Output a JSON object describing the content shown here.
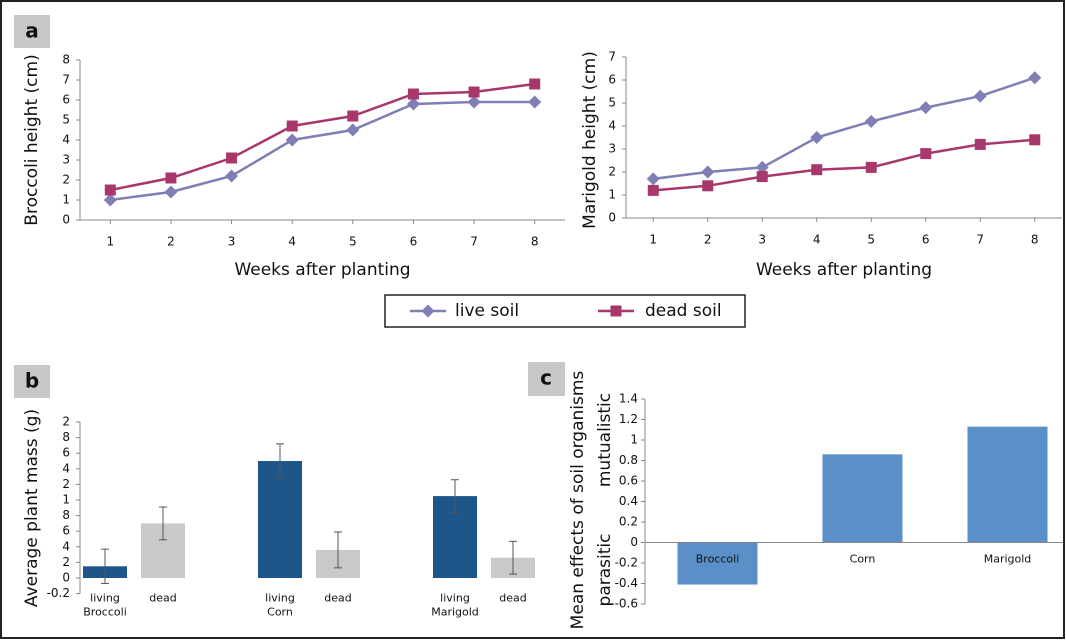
{
  "panel_labels": [
    "a",
    "b",
    "c"
  ],
  "chart_data": [
    {
      "type": "line",
      "ylabel": "Broccoli height (cm)",
      "xlabel": "Weeks after planting",
      "x": [
        1,
        2,
        3,
        4,
        5,
        6,
        7,
        8
      ],
      "xlim": [
        0.5,
        8.5
      ],
      "xticks": [
        1,
        2,
        3,
        4,
        5,
        6,
        7,
        8
      ],
      "ylim": [
        0,
        8
      ],
      "yticks": [
        0,
        1,
        2,
        3,
        4,
        5,
        6,
        7,
        8
      ],
      "series": [
        {
          "name": "live soil",
          "color": "#7f7fb5",
          "marker": "diamond",
          "values": [
            1.0,
            1.4,
            2.2,
            4.0,
            4.5,
            5.8,
            5.9,
            5.9
          ]
        },
        {
          "name": "dead soil",
          "color": "#a8376b",
          "marker": "square",
          "values": [
            1.5,
            2.1,
            3.1,
            4.7,
            5.2,
            6.3,
            6.4,
            6.8
          ]
        }
      ]
    },
    {
      "type": "line",
      "ylabel": "Marigold height (cm)",
      "xlabel": "Weeks after planting",
      "x": [
        1,
        2,
        3,
        4,
        5,
        6,
        7,
        8
      ],
      "xlim": [
        0.5,
        8.5
      ],
      "xticks": [
        1,
        2,
        3,
        4,
        5,
        6,
        7,
        8
      ],
      "ylim": [
        0,
        7
      ],
      "yticks": [
        0,
        1,
        2,
        3,
        4,
        5,
        6,
        7
      ],
      "series": [
        {
          "name": "live soil",
          "color": "#7f7fb5",
          "marker": "diamond",
          "values": [
            1.7,
            2.0,
            2.2,
            3.5,
            4.2,
            4.8,
            5.3,
            6.1
          ]
        },
        {
          "name": "dead soil",
          "color": "#a8376b",
          "marker": "square",
          "values": [
            1.2,
            1.4,
            1.8,
            2.1,
            2.2,
            2.8,
            3.2,
            3.4
          ]
        }
      ]
    },
    {
      "type": "grouped_bar",
      "ylabel": "Average plant mass (g)",
      "categories": [
        "Broccoli",
        "Corn",
        "Marigold"
      ],
      "ylim": [
        -0.2,
        2.0
      ],
      "yticks": [
        {
          "value": 2.0,
          "label": "2"
        },
        {
          "value": 1.8,
          "label": "8"
        },
        {
          "value": 1.6,
          "label": "6"
        },
        {
          "value": 1.4,
          "label": "4"
        },
        {
          "value": 1.2,
          "label": "2"
        },
        {
          "value": 1.0,
          "label": "1"
        },
        {
          "value": 0.8,
          "label": "8"
        },
        {
          "value": 0.6,
          "label": "6"
        },
        {
          "value": 0.4,
          "label": "4"
        },
        {
          "value": 0.2,
          "label": "2"
        },
        0,
        -0.2
      ],
      "series": [
        {
          "name": "living",
          "color": "#1e5689",
          "values": [
            0.15,
            1.5,
            1.05
          ],
          "errors": [
            0.22,
            0.22,
            0.21
          ]
        },
        {
          "name": "dead",
          "color": "#c9c9c9",
          "values": [
            0.7,
            0.36,
            0.26
          ],
          "errors": [
            0.21,
            0.23,
            0.21
          ]
        }
      ]
    },
    {
      "type": "bar",
      "ylabel": "Mean effects of soil organisms",
      "annotations": [
        "mutualistic",
        "parasitic"
      ],
      "categories": [
        "Broccoli",
        "Corn",
        "Marigold"
      ],
      "values": [
        -0.41,
        0.86,
        1.13
      ],
      "color": "#5b8fc7",
      "ylim": [
        -0.6,
        1.4
      ],
      "yticks": [
        1.4,
        1.2,
        1,
        0.8,
        0.6,
        0.4,
        0.2,
        0,
        -0.2,
        -0.4,
        -0.6
      ]
    }
  ]
}
